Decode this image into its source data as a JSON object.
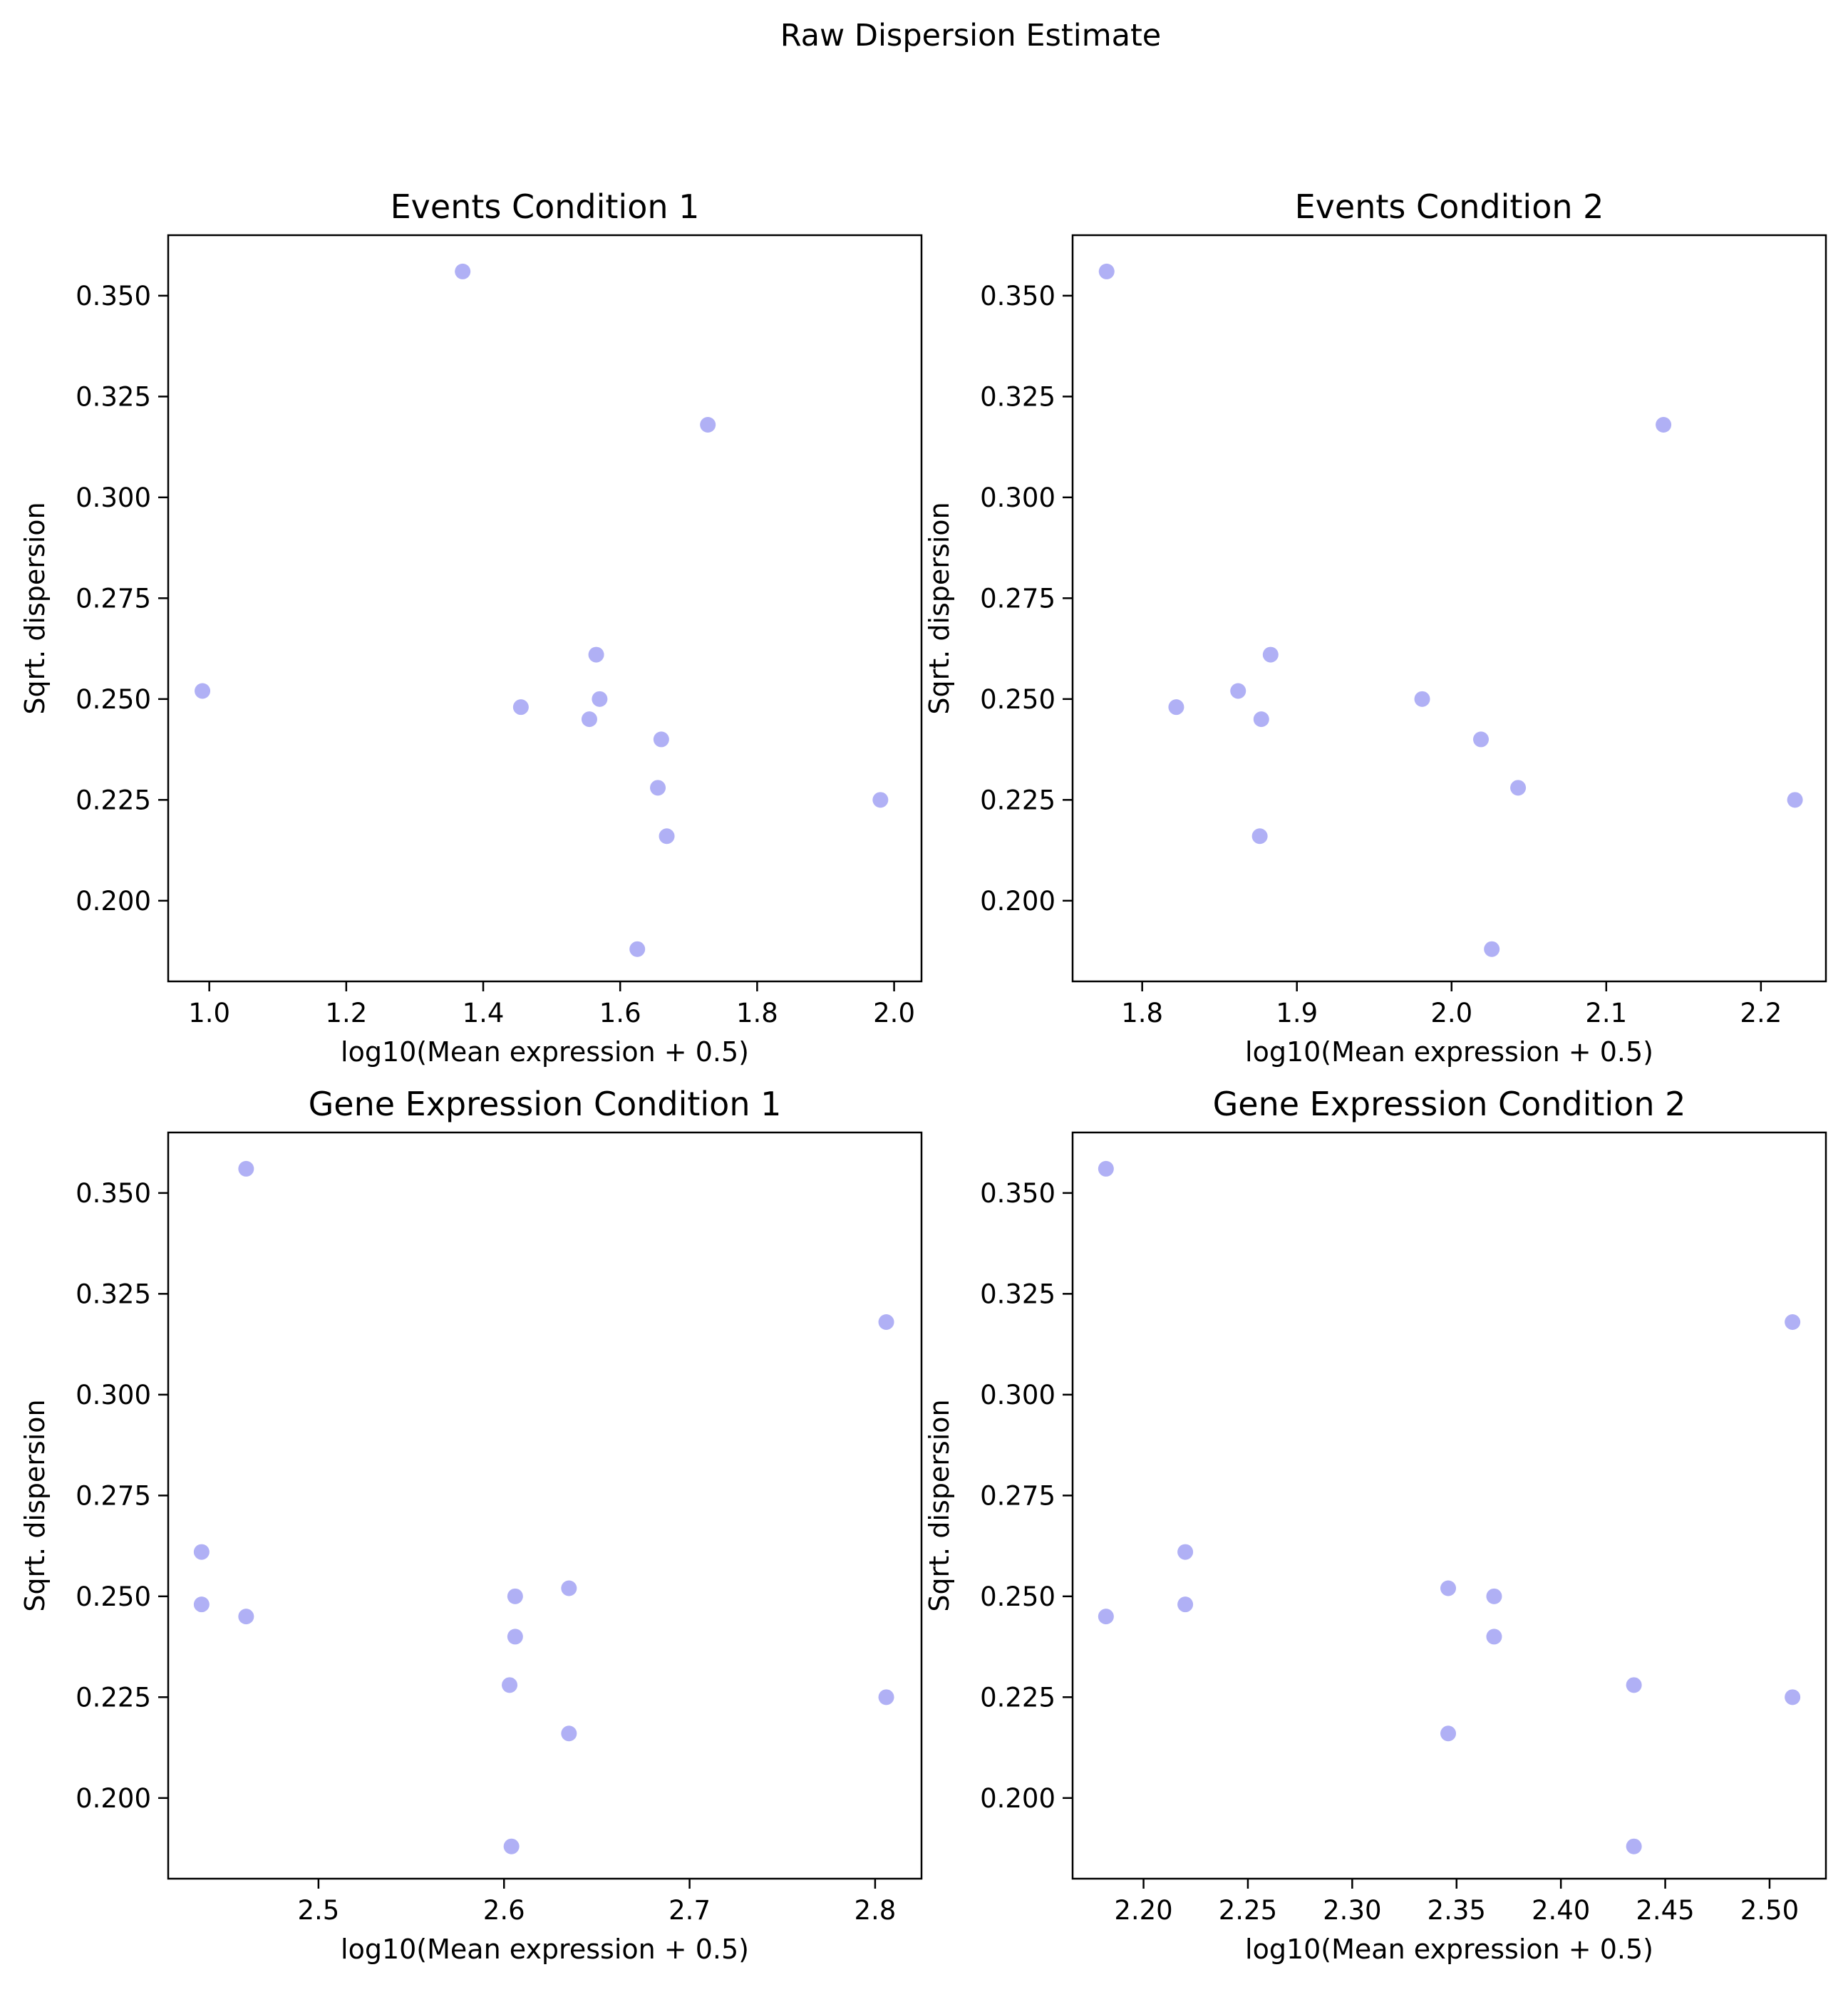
{
  "figure": {
    "suptitle": "Raw Dispersion Estimate",
    "point_color": "#b0b0f5"
  },
  "chart_data": [
    {
      "type": "scatter",
      "title": "Events Condition 1",
      "xlabel": "log10(Mean expression + 0.5)",
      "ylabel": "Sqrt. dispersion",
      "xlim": [
        0.94,
        2.04
      ],
      "ylim": [
        0.18,
        0.365
      ],
      "xticks": [
        1.0,
        1.2,
        1.4,
        1.6,
        1.8,
        2.0
      ],
      "xtick_labels": [
        "1.0",
        "1.2",
        "1.4",
        "1.6",
        "1.8",
        "2.0"
      ],
      "yticks": [
        0.2,
        0.225,
        0.25,
        0.275,
        0.3,
        0.325,
        0.35
      ],
      "ytick_labels": [
        "0.200",
        "0.225",
        "0.250",
        "0.275",
        "0.300",
        "0.325",
        "0.350"
      ],
      "grid": false,
      "points": [
        {
          "x": 0.99,
          "y": 0.252
        },
        {
          "x": 1.37,
          "y": 0.356
        },
        {
          "x": 1.455,
          "y": 0.248
        },
        {
          "x": 1.555,
          "y": 0.245
        },
        {
          "x": 1.565,
          "y": 0.261
        },
        {
          "x": 1.57,
          "y": 0.25
        },
        {
          "x": 1.625,
          "y": 0.188
        },
        {
          "x": 1.655,
          "y": 0.228
        },
        {
          "x": 1.66,
          "y": 0.24
        },
        {
          "x": 1.668,
          "y": 0.216
        },
        {
          "x": 1.728,
          "y": 0.318
        },
        {
          "x": 1.98,
          "y": 0.225
        }
      ]
    },
    {
      "type": "scatter",
      "title": "Events Condition 2",
      "xlabel": "log10(Mean expression + 0.5)",
      "ylabel": "Sqrt. dispersion",
      "xlim": [
        1.755,
        2.242
      ],
      "ylim": [
        0.18,
        0.365
      ],
      "xticks": [
        1.8,
        1.9,
        2.0,
        2.1,
        2.2
      ],
      "xtick_labels": [
        "1.8",
        "1.9",
        "2.0",
        "2.1",
        "2.2"
      ],
      "yticks": [
        0.2,
        0.225,
        0.25,
        0.275,
        0.3,
        0.325,
        0.35
      ],
      "ytick_labels": [
        "0.200",
        "0.225",
        "0.250",
        "0.275",
        "0.300",
        "0.325",
        "0.350"
      ],
      "grid": false,
      "points": [
        {
          "x": 1.777,
          "y": 0.356
        },
        {
          "x": 1.822,
          "y": 0.248
        },
        {
          "x": 1.862,
          "y": 0.252
        },
        {
          "x": 1.876,
          "y": 0.216
        },
        {
          "x": 1.877,
          "y": 0.245
        },
        {
          "x": 1.883,
          "y": 0.261
        },
        {
          "x": 1.981,
          "y": 0.25
        },
        {
          "x": 2.019,
          "y": 0.24
        },
        {
          "x": 2.026,
          "y": 0.188
        },
        {
          "x": 2.043,
          "y": 0.228
        },
        {
          "x": 2.137,
          "y": 0.318
        },
        {
          "x": 2.222,
          "y": 0.225
        }
      ]
    },
    {
      "type": "scatter",
      "title": "Gene Expression Condition 1",
      "xlabel": "log10(Mean expression + 0.5)",
      "ylabel": "Sqrt. dispersion",
      "xlim": [
        2.419,
        2.825
      ],
      "ylim": [
        0.18,
        0.365
      ],
      "xticks": [
        2.5,
        2.6,
        2.7,
        2.8
      ],
      "xtick_labels": [
        "2.5",
        "2.6",
        "2.7",
        "2.8"
      ],
      "yticks": [
        0.2,
        0.225,
        0.25,
        0.275,
        0.3,
        0.325,
        0.35
      ],
      "ytick_labels": [
        "0.200",
        "0.225",
        "0.250",
        "0.275",
        "0.300",
        "0.325",
        "0.350"
      ],
      "grid": false,
      "points": [
        {
          "x": 2.437,
          "y": 0.261
        },
        {
          "x": 2.437,
          "y": 0.248
        },
        {
          "x": 2.461,
          "y": 0.356
        },
        {
          "x": 2.461,
          "y": 0.245
        },
        {
          "x": 2.603,
          "y": 0.228
        },
        {
          "x": 2.604,
          "y": 0.188
        },
        {
          "x": 2.606,
          "y": 0.25
        },
        {
          "x": 2.606,
          "y": 0.24
        },
        {
          "x": 2.635,
          "y": 0.252
        },
        {
          "x": 2.635,
          "y": 0.216
        },
        {
          "x": 2.806,
          "y": 0.318
        },
        {
          "x": 2.806,
          "y": 0.225
        }
      ]
    },
    {
      "type": "scatter",
      "title": "Gene Expression Condition 2",
      "xlabel": "log10(Mean expression + 0.5)",
      "ylabel": "Sqrt. dispersion",
      "xlim": [
        2.166,
        2.527
      ],
      "ylim": [
        0.18,
        0.365
      ],
      "xticks": [
        2.2,
        2.25,
        2.3,
        2.35,
        2.4,
        2.45,
        2.5
      ],
      "xtick_labels": [
        "2.20",
        "2.25",
        "2.30",
        "2.35",
        "2.40",
        "2.45",
        "2.50"
      ],
      "yticks": [
        0.2,
        0.225,
        0.25,
        0.275,
        0.3,
        0.325,
        0.35
      ],
      "ytick_labels": [
        "0.200",
        "0.225",
        "0.250",
        "0.275",
        "0.300",
        "0.325",
        "0.350"
      ],
      "grid": false,
      "points": [
        {
          "x": 2.182,
          "y": 0.356
        },
        {
          "x": 2.182,
          "y": 0.245
        },
        {
          "x": 2.22,
          "y": 0.261
        },
        {
          "x": 2.22,
          "y": 0.248
        },
        {
          "x": 2.346,
          "y": 0.252
        },
        {
          "x": 2.346,
          "y": 0.216
        },
        {
          "x": 2.368,
          "y": 0.25
        },
        {
          "x": 2.368,
          "y": 0.24
        },
        {
          "x": 2.435,
          "y": 0.228
        },
        {
          "x": 2.435,
          "y": 0.188
        },
        {
          "x": 2.511,
          "y": 0.318
        },
        {
          "x": 2.511,
          "y": 0.225
        }
      ]
    }
  ]
}
